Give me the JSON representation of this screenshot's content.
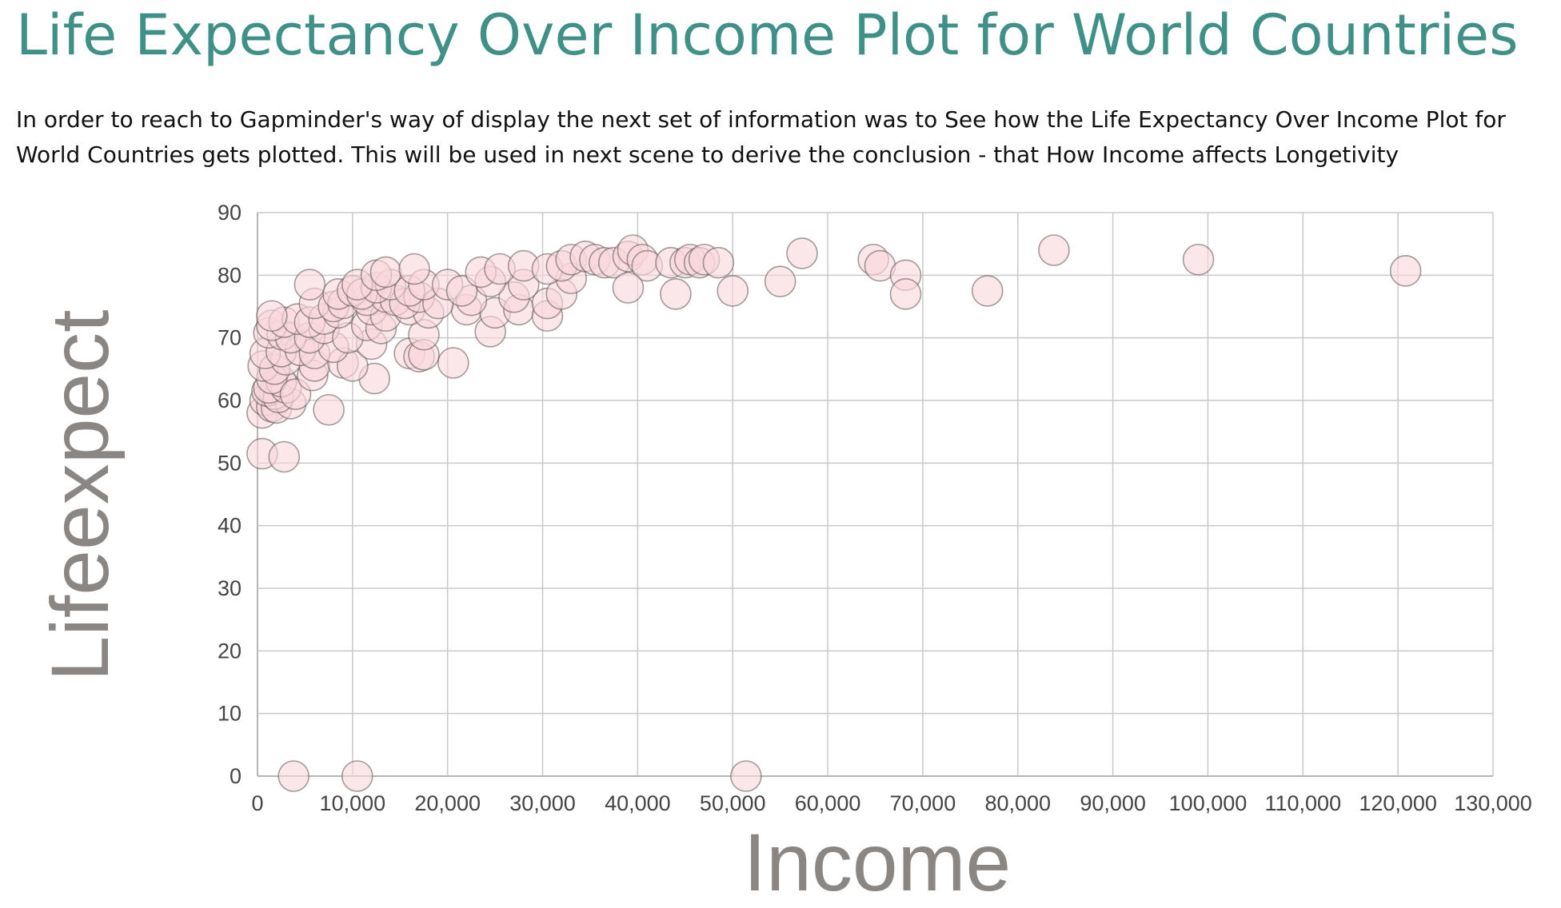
{
  "page": {
    "title": "Life Expectancy Over Income Plot for World Countries",
    "description": "In order to reach to Gapminder's way of display the next set of information was to See how the Life Expectancy Over Income Plot for World Countries gets plotted. This will be used in next scene to derive the conclusion - that How Income affects Longetivity"
  },
  "colors": {
    "title": "#3f9187",
    "point_fill": "#f9d7dc",
    "point_stroke": "#5a5050",
    "axis_title": "#8a8684",
    "grid": "#c8c8c8"
  },
  "chart_data": {
    "type": "scatter",
    "title": "",
    "xlabel": "Income",
    "ylabel": "Lifeexpect",
    "xlim": [
      0,
      130000
    ],
    "ylim": [
      0,
      90
    ],
    "x_ticks": [
      "0",
      "10,000",
      "20,000",
      "30,000",
      "40,000",
      "50,000",
      "60,000",
      "70,000",
      "80,000",
      "90,000",
      "100,000",
      "110,000",
      "120,000",
      "130,000"
    ],
    "y_ticks": [
      "0",
      "10",
      "20",
      "30",
      "40",
      "50",
      "60",
      "70",
      "80",
      "90"
    ],
    "grid": true,
    "legend": "none",
    "points": [
      [
        3800,
        0
      ],
      [
        10500,
        0
      ],
      [
        51400,
        0
      ],
      [
        500,
        51.5
      ],
      [
        2800,
        51
      ],
      [
        500,
        58
      ],
      [
        7500,
        58.5
      ],
      [
        800,
        60
      ],
      [
        1500,
        59
      ],
      [
        2000,
        58.8
      ],
      [
        3500,
        59.5
      ],
      [
        1800,
        61
      ],
      [
        1000,
        61.5
      ],
      [
        2200,
        60.5
      ],
      [
        1200,
        62
      ],
      [
        3000,
        62
      ],
      [
        2500,
        63
      ],
      [
        1500,
        63.5
      ],
      [
        4000,
        61
      ],
      [
        12300,
        63.5
      ],
      [
        20600,
        66
      ],
      [
        600,
        65.5
      ],
      [
        1800,
        65
      ],
      [
        3000,
        66.5
      ],
      [
        5800,
        64
      ],
      [
        6000,
        65.5
      ],
      [
        9000,
        66
      ],
      [
        10000,
        65.5
      ],
      [
        800,
        67.5
      ],
      [
        2500,
        67.8
      ],
      [
        4500,
        68
      ],
      [
        6000,
        67.5
      ],
      [
        8000,
        68.5
      ],
      [
        12000,
        69
      ],
      [
        16000,
        67.5
      ],
      [
        17000,
        67
      ],
      [
        17500,
        67.3
      ],
      [
        1200,
        70.8
      ],
      [
        2600,
        70.5
      ],
      [
        3500,
        70
      ],
      [
        5500,
        70
      ],
      [
        7000,
        71.5
      ],
      [
        9500,
        70
      ],
      [
        11500,
        72
      ],
      [
        13000,
        71.5
      ],
      [
        17500,
        70.5
      ],
      [
        24500,
        71
      ],
      [
        1500,
        72
      ],
      [
        2800,
        72.5
      ],
      [
        4200,
        73
      ],
      [
        5500,
        72.5
      ],
      [
        7000,
        73
      ],
      [
        8500,
        74
      ],
      [
        12000,
        74.5
      ],
      [
        13500,
        73.5
      ],
      [
        16000,
        74.5
      ],
      [
        18000,
        74
      ],
      [
        22000,
        74.5
      ],
      [
        25000,
        74
      ],
      [
        27500,
        74.5
      ],
      [
        30500,
        73.5
      ],
      [
        1500,
        73.5
      ],
      [
        6000,
        75.5
      ],
      [
        8000,
        75
      ],
      [
        9000,
        75.5
      ],
      [
        11500,
        76
      ],
      [
        13500,
        76.5
      ],
      [
        14500,
        76
      ],
      [
        15500,
        75.5
      ],
      [
        17000,
        76.5
      ],
      [
        19000,
        75.5
      ],
      [
        22500,
        76
      ],
      [
        27000,
        76.5
      ],
      [
        30500,
        75.5
      ],
      [
        32000,
        77
      ],
      [
        5500,
        78.5
      ],
      [
        8500,
        77
      ],
      [
        10000,
        77.5
      ],
      [
        11000,
        77
      ],
      [
        12500,
        78
      ],
      [
        14000,
        78.5
      ],
      [
        16000,
        77.5
      ],
      [
        17500,
        78.5
      ],
      [
        20000,
        78.5
      ],
      [
        21500,
        77.5
      ],
      [
        24500,
        79
      ],
      [
        28000,
        78.5
      ],
      [
        33000,
        79.5
      ],
      [
        10500,
        78.5
      ],
      [
        12500,
        80
      ],
      [
        13500,
        80.5
      ],
      [
        16500,
        81
      ],
      [
        23500,
        80.5
      ],
      [
        25500,
        81
      ],
      [
        28000,
        81.5
      ],
      [
        30500,
        81
      ],
      [
        32000,
        81.5
      ],
      [
        33000,
        82.5
      ],
      [
        34500,
        83
      ],
      [
        35500,
        82.5
      ],
      [
        36500,
        82
      ],
      [
        37500,
        82
      ],
      [
        39000,
        83
      ],
      [
        39500,
        84
      ],
      [
        40500,
        82.5
      ],
      [
        41000,
        81.5
      ],
      [
        43500,
        82
      ],
      [
        45000,
        82
      ],
      [
        45500,
        82.5
      ],
      [
        46500,
        82
      ],
      [
        47000,
        82.5
      ],
      [
        48500,
        82
      ],
      [
        39000,
        78
      ],
      [
        44000,
        77
      ],
      [
        50000,
        77.5
      ],
      [
        55000,
        79
      ],
      [
        57300,
        83.5
      ],
      [
        64800,
        82.5
      ],
      [
        65500,
        81.5
      ],
      [
        68200,
        80
      ],
      [
        68200,
        77
      ],
      [
        76800,
        77.5
      ],
      [
        83800,
        84
      ],
      [
        99000,
        82.5
      ],
      [
        120800,
        80.7
      ]
    ]
  }
}
